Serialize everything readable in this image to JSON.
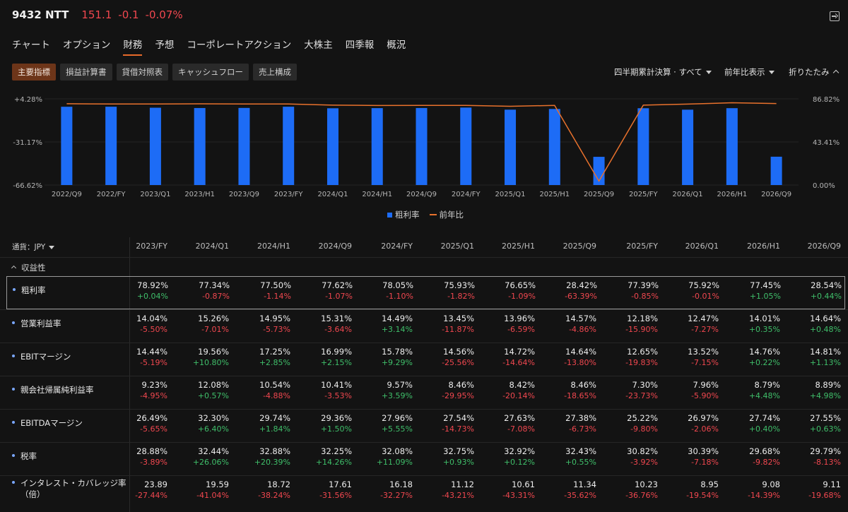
{
  "header": {
    "ticker": "9432 NTT",
    "price": "151.1",
    "change": "-0.1",
    "change_pct": "-0.07%"
  },
  "nav": [
    "チャート",
    "オプション",
    "財務",
    "予想",
    "コーポレートアクション",
    "大株主",
    "四季報",
    "概況"
  ],
  "nav_active": "財務",
  "subtabs": [
    "主要指標",
    "損益計算書",
    "貸借対照表",
    "キャッシュフロー",
    "売上構成"
  ],
  "subtab_active": "主要指標",
  "controls": {
    "period": "四半期累計決算 · すべて",
    "yoy": "前年比表示",
    "collapse": "折りたたみ"
  },
  "chart_data": {
    "type": "bar",
    "categories": [
      "2022/Q9",
      "2022/FY",
      "2023/Q1",
      "2023/H1",
      "2023/Q9",
      "2023/FY",
      "2024/Q1",
      "2024/H1",
      "2024/Q9",
      "2024/FY",
      "2025/Q1",
      "2025/H1",
      "2025/Q9",
      "2025/FY",
      "2026/Q1",
      "2026/H1",
      "2026/Q9"
    ],
    "series": [
      {
        "name": "粗利率",
        "type": "bar",
        "axis": "right",
        "color": "#1d6cf6",
        "values": [
          78.88,
          78.92,
          77.9,
          77.6,
          77.7,
          78.92,
          77.34,
          77.5,
          77.62,
          78.05,
          75.93,
          76.65,
          28.42,
          77.39,
          75.92,
          77.45,
          28.54
        ]
      },
      {
        "name": "前年比",
        "type": "line",
        "axis": "left",
        "color": "#e8712c",
        "values": [
          0.3,
          0.04,
          0.1,
          0.2,
          0.1,
          0.04,
          -0.87,
          -1.14,
          -1.07,
          -1.1,
          -1.82,
          -1.09,
          -63.39,
          -0.85,
          -0.01,
          1.05,
          0.44
        ]
      }
    ],
    "left_axis": {
      "ticks": [
        "+4.28%",
        "-31.17%",
        "-66.62%"
      ],
      "range": [
        -66.62,
        4.28
      ]
    },
    "right_axis": {
      "ticks": [
        "86.82%",
        "43.41%",
        "0.00%"
      ],
      "range": [
        0,
        86.82
      ]
    },
    "legend_placement": "bottom-center"
  },
  "table": {
    "currency_label": "通貨：JPY",
    "columns": [
      "2023/FY",
      "2024/Q1",
      "2024/H1",
      "2024/Q9",
      "2024/FY",
      "2025/Q1",
      "2025/H1",
      "2025/Q9",
      "2025/FY",
      "2026/Q1",
      "2026/H1",
      "2026/Q9"
    ],
    "section": "収益性",
    "rows": [
      {
        "label": "粗利率",
        "selected": true,
        "values": [
          "78.92%",
          "77.34%",
          "77.50%",
          "77.62%",
          "78.05%",
          "75.93%",
          "76.65%",
          "28.42%",
          "77.39%",
          "75.92%",
          "77.45%",
          "28.54%"
        ],
        "changes": [
          "+0.04%",
          "-0.87%",
          "-1.14%",
          "-1.07%",
          "-1.10%",
          "-1.82%",
          "-1.09%",
          "-63.39%",
          "-0.85%",
          "-0.01%",
          "+1.05%",
          "+0.44%"
        ]
      },
      {
        "label": "営業利益率",
        "selected": false,
        "values": [
          "14.04%",
          "15.26%",
          "14.95%",
          "15.31%",
          "14.49%",
          "13.45%",
          "13.96%",
          "14.57%",
          "12.18%",
          "12.47%",
          "14.01%",
          "14.64%"
        ],
        "changes": [
          "-5.50%",
          "-7.01%",
          "-5.73%",
          "-3.64%",
          "+3.14%",
          "-11.87%",
          "-6.59%",
          "-4.86%",
          "-15.90%",
          "-7.27%",
          "+0.35%",
          "+0.48%"
        ]
      },
      {
        "label": "EBITマージン",
        "selected": false,
        "values": [
          "14.44%",
          "19.56%",
          "17.25%",
          "16.99%",
          "15.78%",
          "14.56%",
          "14.72%",
          "14.64%",
          "12.65%",
          "13.52%",
          "14.76%",
          "14.81%"
        ],
        "changes": [
          "-5.19%",
          "+10.80%",
          "+2.85%",
          "+2.15%",
          "+9.29%",
          "-25.56%",
          "-14.64%",
          "-13.80%",
          "-19.83%",
          "-7.15%",
          "+0.22%",
          "+1.13%"
        ]
      },
      {
        "label": "親会社帰属純利益率",
        "selected": false,
        "values": [
          "9.23%",
          "12.08%",
          "10.54%",
          "10.41%",
          "9.57%",
          "8.46%",
          "8.42%",
          "8.46%",
          "7.30%",
          "7.96%",
          "8.79%",
          "8.89%"
        ],
        "changes": [
          "-4.95%",
          "+0.57%",
          "-4.88%",
          "-3.53%",
          "+3.59%",
          "-29.95%",
          "-20.14%",
          "-18.65%",
          "-23.73%",
          "-5.90%",
          "+4.48%",
          "+4.98%"
        ]
      },
      {
        "label": "EBITDAマージン",
        "selected": false,
        "values": [
          "26.49%",
          "32.30%",
          "29.74%",
          "29.36%",
          "27.96%",
          "27.54%",
          "27.63%",
          "27.38%",
          "25.22%",
          "26.97%",
          "27.74%",
          "27.55%"
        ],
        "changes": [
          "-5.65%",
          "+6.40%",
          "+1.84%",
          "+1.50%",
          "+5.55%",
          "-14.73%",
          "-7.08%",
          "-6.73%",
          "-9.80%",
          "-2.06%",
          "+0.40%",
          "+0.63%"
        ]
      },
      {
        "label": "税率",
        "selected": false,
        "values": [
          "28.88%",
          "32.44%",
          "32.88%",
          "32.25%",
          "32.08%",
          "32.75%",
          "32.92%",
          "32.43%",
          "30.82%",
          "30.39%",
          "29.68%",
          "29.79%"
        ],
        "changes": [
          "-3.89%",
          "+26.06%",
          "+20.39%",
          "+14.26%",
          "+11.09%",
          "+0.93%",
          "+0.12%",
          "+0.55%",
          "-3.92%",
          "-7.18%",
          "-9.82%",
          "-8.13%"
        ]
      },
      {
        "label": "インタレスト・カバレッジ率（倍）",
        "selected": false,
        "values": [
          "23.89",
          "19.59",
          "18.72",
          "17.61",
          "16.18",
          "11.12",
          "10.61",
          "11.34",
          "10.23",
          "8.95",
          "9.08",
          "9.11"
        ],
        "changes": [
          "-27.44%",
          "-41.04%",
          "-38.24%",
          "-31.56%",
          "-32.27%",
          "-43.21%",
          "-43.31%",
          "-35.62%",
          "-36.76%",
          "-19.54%",
          "-14.39%",
          "-19.68%"
        ]
      }
    ]
  }
}
